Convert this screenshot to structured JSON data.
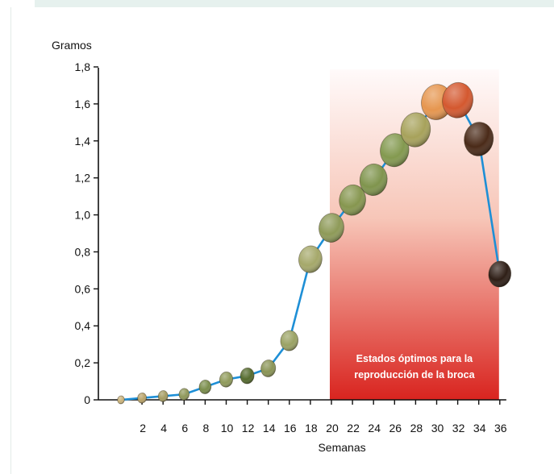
{
  "chart_data": {
    "type": "line",
    "ylabel": "Gramos",
    "xlabel": "Semanas",
    "x_ticks": [
      2,
      4,
      6,
      8,
      10,
      12,
      14,
      16,
      18,
      20,
      22,
      24,
      26,
      28,
      30,
      32,
      34,
      36
    ],
    "y_ticks": [
      "0",
      "0,2",
      "0,4",
      "0,6",
      "0,8",
      "1,0",
      "1,2",
      "1,4",
      "1,6",
      "1,8"
    ],
    "y_tick_values": [
      0,
      0.2,
      0.4,
      0.6,
      0.8,
      1.0,
      1.2,
      1.4,
      1.6,
      1.8
    ],
    "xlim": [
      0,
      37
    ],
    "ylim": [
      0,
      1.8
    ],
    "grid": false,
    "series": [
      {
        "x": [
          0,
          2,
          4,
          6,
          8,
          10,
          12,
          14,
          16,
          18,
          20,
          22,
          24,
          26,
          28,
          30,
          32,
          34,
          36
        ],
        "y": [
          0,
          0.01,
          0.02,
          0.03,
          0.07,
          0.11,
          0.13,
          0.17,
          0.32,
          0.76,
          0.93,
          1.08,
          1.19,
          1.35,
          1.46,
          1.61,
          1.62,
          1.41,
          0.68
        ],
        "color": "#1e8fd6"
      }
    ],
    "highlight_region": {
      "x_from": 20,
      "x_to": 36,
      "label_lines": [
        "Estados óptimos  para la",
        "reproducción de la broca"
      ],
      "color_top": "#fffafa",
      "color_bottom": "#d9241f"
    },
    "marker_colors": [
      "#c9b27a",
      "#b8a268",
      "#a49b61",
      "#8f985a",
      "#7a8d4b",
      "#8f9a5a",
      "#556b2e",
      "#8a9456",
      "#9aa264",
      "#a5a86a",
      "#8e9a58",
      "#86964f",
      "#7f944d",
      "#83994f",
      "#a7a25b",
      "#e6964f",
      "#d4582f",
      "#4a2a18",
      "#2e1e16"
    ]
  }
}
